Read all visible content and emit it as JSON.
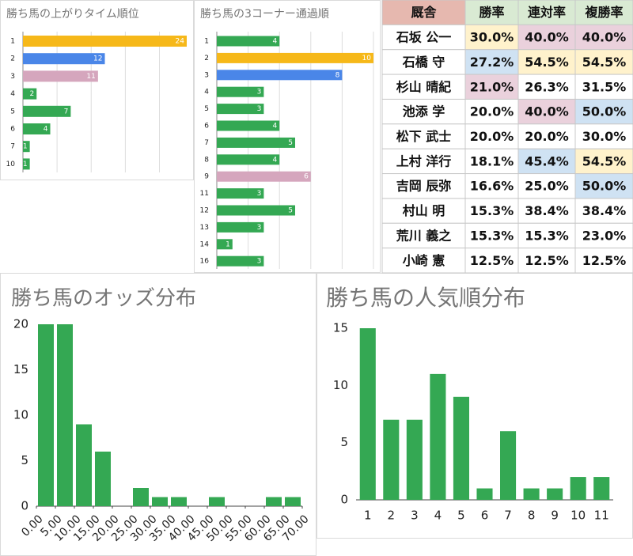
{
  "chart_data": [
    {
      "type": "bar",
      "orientation": "horizontal",
      "title": "勝ち馬の上がりタイム順位",
      "categories": [
        "1",
        "2",
        "3",
        "4",
        "5",
        "6",
        "7",
        "10"
      ],
      "values": [
        24,
        12,
        11,
        2,
        7,
        4,
        1,
        1
      ],
      "colors": [
        "#f6b819",
        "#4a86e8",
        "#d5a6bd",
        "#34a853",
        "#34a853",
        "#34a853",
        "#34a853",
        "#34a853"
      ],
      "xlim": [
        0,
        24
      ],
      "xticks": [
        0,
        5,
        10,
        15,
        20
      ],
      "grid": true
    },
    {
      "type": "bar",
      "orientation": "horizontal",
      "title": "勝ち馬の3コーナー通過順",
      "categories": [
        "1",
        "2",
        "3",
        "4",
        "5",
        "6",
        "7",
        "8",
        "9",
        "11",
        "12",
        "13",
        "14",
        "16"
      ],
      "values": [
        4,
        10,
        8,
        3,
        3,
        4,
        5,
        4,
        6,
        3,
        5,
        3,
        1,
        3
      ],
      "colors": [
        "#34a853",
        "#f6b819",
        "#4a86e8",
        "#34a853",
        "#34a853",
        "#34a853",
        "#34a853",
        "#34a853",
        "#d5a6bd",
        "#34a853",
        "#34a853",
        "#34a853",
        "#34a853",
        "#34a853"
      ],
      "xlim": [
        0,
        10
      ],
      "xticks": [
        0,
        2,
        4,
        6,
        8,
        10
      ],
      "grid": true
    },
    {
      "type": "histogram",
      "title": "勝ち馬のオッズ分布",
      "color": "#34a853",
      "bins": [
        0,
        5,
        10,
        15,
        20,
        25,
        30,
        35,
        40,
        45,
        50,
        55,
        60,
        65,
        70
      ],
      "values": [
        20,
        20,
        9,
        6,
        0,
        2,
        1,
        1,
        0,
        1,
        0,
        0,
        1,
        1
      ],
      "xlim": [
        0,
        70
      ],
      "xticks": [
        {
          "value": 0,
          "label": "0.00"
        },
        {
          "value": 5,
          "label": "5.00"
        },
        {
          "value": 10,
          "label": "10.00"
        },
        {
          "value": 15,
          "label": "15.00"
        },
        {
          "value": 20,
          "label": "20.00"
        },
        {
          "value": 25,
          "label": "25.00"
        },
        {
          "value": 30,
          "label": "30.00"
        },
        {
          "value": 35,
          "label": "35.00"
        },
        {
          "value": 40,
          "label": "40.00"
        },
        {
          "value": 45,
          "label": "45.00"
        },
        {
          "value": 50,
          "label": "50.00"
        },
        {
          "value": 55,
          "label": "55.00"
        },
        {
          "value": 60,
          "label": "60.00"
        },
        {
          "value": 65,
          "label": "65.00"
        },
        {
          "value": 70,
          "label": "70.00"
        }
      ],
      "ylim": [
        0,
        20
      ],
      "yticks": [
        0,
        5,
        10,
        15,
        20
      ],
      "grid": false
    },
    {
      "type": "bar",
      "title": "勝ち馬の人気順分布",
      "color": "#34a853",
      "categories": [
        "1",
        "2",
        "3",
        "4",
        "5",
        "6",
        "7",
        "8",
        "9",
        "10",
        "11"
      ],
      "values": [
        15,
        7,
        7,
        11,
        9,
        1,
        6,
        1,
        1,
        2,
        2
      ],
      "ylim": [
        0,
        15
      ],
      "yticks": [
        0,
        5,
        10,
        15
      ],
      "grid": false
    }
  ],
  "table": {
    "header": [
      "厩舎",
      "勝率",
      "連対率",
      "複勝率"
    ],
    "header_fills": [
      "#e6b8af",
      "#d9ead3",
      "#d9ead3",
      "#d9ead3"
    ],
    "rows": [
      [
        "石坂 公一",
        "30.0%",
        "40.0%",
        "40.0%"
      ],
      [
        "石橋 守",
        "27.2%",
        "54.5%",
        "54.5%"
      ],
      [
        "杉山 晴紀",
        "21.0%",
        "26.3%",
        "31.5%"
      ],
      [
        "池添 学",
        "20.0%",
        "40.0%",
        "50.0%"
      ],
      [
        "松下 武士",
        "20.0%",
        "20.0%",
        "30.0%"
      ],
      [
        "上村 洋行",
        "18.1%",
        "45.4%",
        "54.5%"
      ],
      [
        "吉岡 辰弥",
        "16.6%",
        "25.0%",
        "50.0%"
      ],
      [
        "村山 明",
        "15.3%",
        "38.4%",
        "38.4%"
      ],
      [
        "荒川 義之",
        "15.3%",
        "15.3%",
        "23.0%"
      ],
      [
        "小崎 憲",
        "12.5%",
        "12.5%",
        "12.5%"
      ]
    ],
    "fills": [
      [
        null,
        "#fff2cc",
        "#ead1dc",
        "#ead1dc"
      ],
      [
        null,
        "#cfe2f3",
        "#fff2cc",
        "#fff2cc"
      ],
      [
        null,
        "#ead1dc",
        null,
        null
      ],
      [
        null,
        null,
        "#ead1dc",
        "#cfe2f3"
      ],
      [
        null,
        null,
        null,
        null
      ],
      [
        null,
        null,
        "#cfe2f3",
        "#fff2cc"
      ],
      [
        null,
        null,
        null,
        "#cfe2f3"
      ],
      [
        null,
        null,
        null,
        null
      ],
      [
        null,
        null,
        null,
        null
      ],
      [
        null,
        null,
        null,
        null
      ]
    ]
  }
}
